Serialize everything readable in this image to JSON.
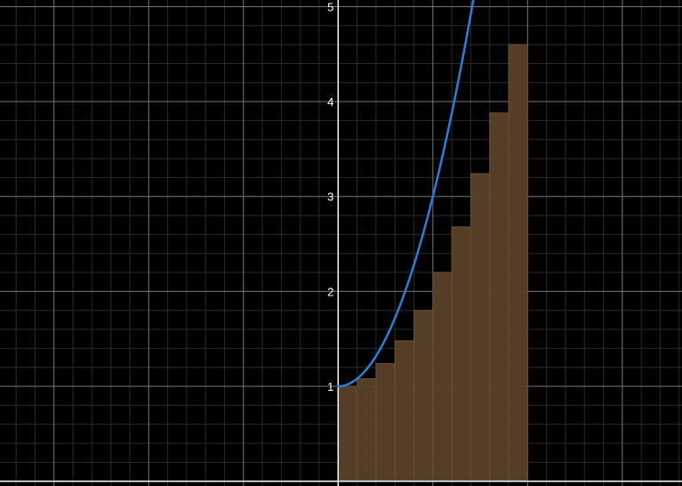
{
  "chart_data": {
    "type": "bar",
    "title": "",
    "xlabel": "",
    "ylabel": "",
    "xlim": [
      -3.57,
      3.63
    ],
    "ylim": [
      -0.05,
      5.07
    ],
    "grid": true,
    "y_tick_labels": [
      "1",
      "2",
      "3",
      "4",
      "5"
    ],
    "y_ticks": [
      1,
      2,
      3,
      4,
      5
    ],
    "series": [
      {
        "type": "bar",
        "x": [
          0.0,
          0.2,
          0.4,
          0.6,
          0.8,
          1.0,
          1.2,
          1.4,
          1.6,
          1.8
        ],
        "width": 0.2,
        "values": [
          1.0,
          1.08,
          1.24,
          1.48,
          1.8,
          2.2,
          2.68,
          3.24,
          3.88,
          4.6
        ]
      },
      {
        "type": "line",
        "function": "y = 1 + 2x^2",
        "x_range": [
          0,
          2.0
        ]
      }
    ],
    "colors": {
      "background": "#000000",
      "bars": "#5a4128",
      "bar_edges": "#6b5036",
      "curve": "#2b7fd6",
      "minor_grid": "#2a2a2a",
      "major_grid": "#777777",
      "axis": "#ffffff"
    }
  }
}
